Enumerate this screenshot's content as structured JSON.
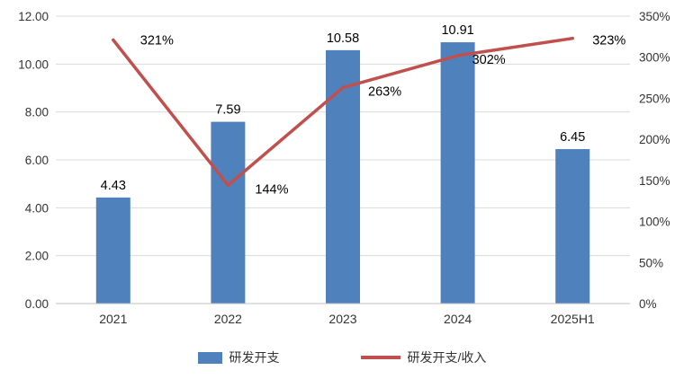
{
  "chart_data": {
    "type": "combo",
    "title": "",
    "categories": [
      "2021",
      "2022",
      "2023",
      "2024",
      "2025H1"
    ],
    "series": [
      {
        "name": "研发开支",
        "type": "bar",
        "values": [
          4.43,
          7.59,
          10.58,
          10.91,
          6.45
        ],
        "labels": [
          "4.43",
          "7.59",
          "10.58",
          "10.91",
          "6.45"
        ],
        "color": "#4F81BD"
      },
      {
        "name": "研发开支/收入",
        "type": "line",
        "values": [
          321,
          144,
          263,
          302,
          323
        ],
        "labels": [
          "321%",
          "144%",
          "263%",
          "302%",
          "323%"
        ],
        "color": "#C0504D"
      }
    ],
    "left_axis": {
      "min": 0,
      "max": 12,
      "tick_step": 2,
      "ticks": [
        "0.00",
        "2.00",
        "4.00",
        "6.00",
        "8.00",
        "10.00",
        "12.00"
      ]
    },
    "right_axis": {
      "min": 0,
      "max": 350,
      "tick_step": 50,
      "ticks": [
        "0%",
        "50%",
        "100%",
        "150%",
        "200%",
        "250%",
        "300%",
        "350%"
      ]
    },
    "legend": [
      {
        "label": "研发开支",
        "marker": "square",
        "color": "#4F81BD"
      },
      {
        "label": "研发开支/收入",
        "marker": "line",
        "color": "#C0504D"
      }
    ],
    "grid": true,
    "legend_position": "bottom",
    "colors": {
      "bar": "#4F81BD",
      "line": "#C0504D",
      "grid": "#D9D9D9",
      "axis": "#BFBFBF",
      "tick_text": "#333333",
      "data_label": "#000000"
    }
  }
}
